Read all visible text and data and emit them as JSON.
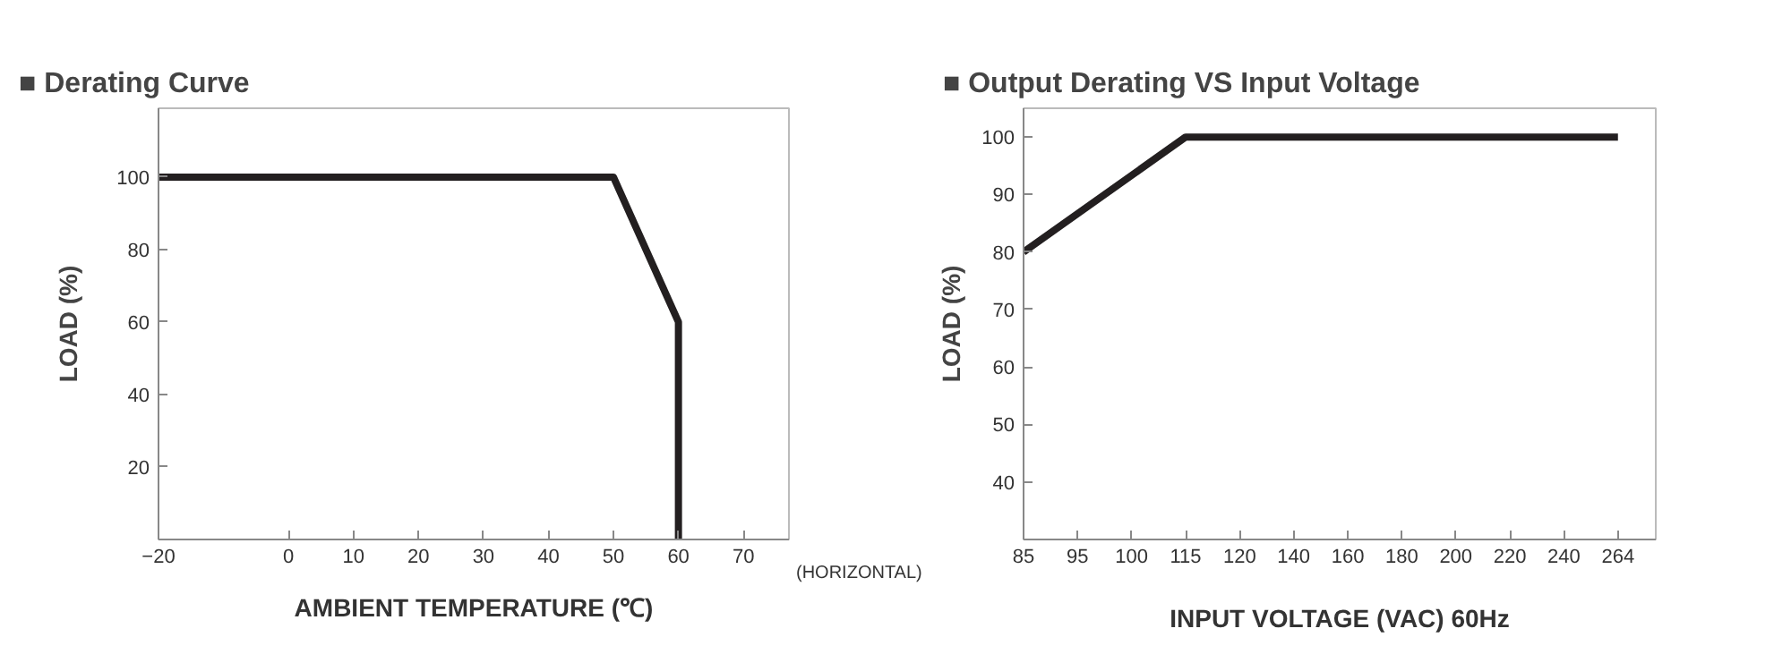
{
  "chart_data": [
    {
      "type": "line",
      "title": "■ Derating Curve",
      "xlabel": "AMBIENT TEMPERATURE (℃)",
      "ylabel": "LOAD (%)",
      "x": [
        -20,
        50,
        60,
        60
      ],
      "series": [
        {
          "color": "#231f20",
          "values": [
            100,
            100,
            60,
            0
          ]
        }
      ],
      "xlim": [
        -20,
        77
      ],
      "ylim": [
        0,
        119
      ],
      "xticks": [
        -20,
        0,
        10,
        20,
        30,
        40,
        50,
        60,
        70
      ],
      "yticks": [
        20,
        40,
        60,
        80,
        100
      ],
      "annotations": [
        "(HORIZONTAL)"
      ],
      "grid": false,
      "marker": "none",
      "line_style": "solid"
    },
    {
      "type": "line",
      "title": "■ Output Derating VS Input Voltage",
      "xlabel": "INPUT VOLTAGE (VAC) 60Hz",
      "ylabel": "LOAD (%)",
      "categories": [
        "85",
        "95",
        "100",
        "115",
        "120",
        "140",
        "160",
        "180",
        "200",
        "220",
        "240",
        "264"
      ],
      "series": [
        {
          "color": "#231f20",
          "values": [
            80,
            null,
            null,
            100,
            100,
            100,
            100,
            100,
            100,
            100,
            100,
            100
          ]
        }
      ],
      "ylim": [
        30,
        105
      ],
      "yticks": [
        40,
        50,
        60,
        70,
        80,
        90,
        100
      ],
      "grid": false,
      "marker": "none",
      "line_style": "solid"
    }
  ]
}
